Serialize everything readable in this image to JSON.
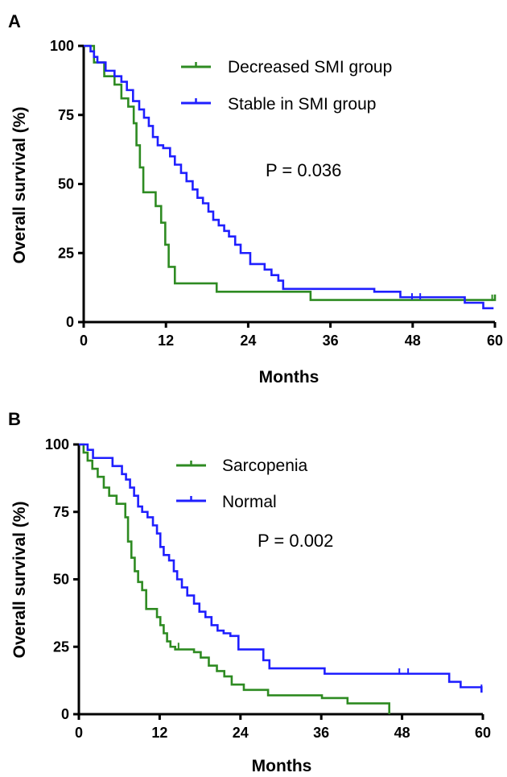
{
  "colors": {
    "decreased": "#2e8b22",
    "stable": "#1f1fff",
    "axis": "#000000"
  },
  "chart_data": [
    {
      "type": "line",
      "panel_label": "A",
      "xlabel": "Months",
      "ylabel": "Overall survival (%)",
      "xlim": [
        0,
        60
      ],
      "ylim": [
        0,
        100
      ],
      "xticks": [
        "0",
        "12",
        "24",
        "36",
        "48",
        "60"
      ],
      "yticks": [
        "0",
        "25",
        "50",
        "75",
        "100"
      ],
      "xtick_values": [
        0,
        12,
        24,
        36,
        48,
        60
      ],
      "ytick_values": [
        0,
        25,
        50,
        75,
        100
      ],
      "legend": "top-center",
      "grid": false,
      "annotation": "P = 0.036",
      "series": [
        {
          "name": "Decreased SMI group",
          "color_key": "decreased",
          "x": [
            0,
            1,
            1.5,
            3,
            4.5,
            5.5,
            6.5,
            7.3,
            7.7,
            8.2,
            8.7,
            9.1,
            10.5,
            11.3,
            11.9,
            12.4,
            12.8,
            13.3,
            15.1,
            19.4,
            33.1,
            45.6,
            56.2,
            59.6,
            60
          ],
          "y": [
            100,
            100,
            94,
            89,
            86,
            81,
            78,
            72,
            64,
            56,
            47,
            47,
            42,
            36,
            28,
            20,
            20,
            14,
            14,
            11,
            8,
            8,
            8,
            8,
            10
          ],
          "censored": [
            [
              59.6,
              8.5
            ]
          ]
        },
        {
          "name": "Stable in SMI group",
          "color_key": "stable",
          "x": [
            0,
            1,
            1.5,
            2,
            3.2,
            4.5,
            5.5,
            6.3,
            7.2,
            8.1,
            8.8,
            9.5,
            10.1,
            10.8,
            11.6,
            12.6,
            13.3,
            14.2,
            15,
            15.9,
            16.6,
            17.4,
            18.2,
            18.9,
            19.7,
            20.5,
            21.2,
            22.1,
            22.9,
            24.3,
            25.6,
            26.4,
            27.4,
            28.4,
            29.1,
            30.3,
            33.5,
            36.8,
            42.4,
            46.2,
            47.9,
            48.5,
            49.1,
            55.6,
            58.3,
            59.8
          ],
          "y": [
            100,
            98,
            96,
            94,
            91,
            89,
            87,
            84,
            80,
            77,
            74,
            71,
            67,
            64,
            63,
            60,
            57,
            54,
            51,
            48,
            45,
            43,
            40,
            37,
            35,
            33,
            31,
            28,
            25,
            21,
            21,
            19,
            17,
            15,
            12,
            12,
            12,
            12,
            11,
            9,
            9,
            9,
            9,
            7,
            5,
            5
          ],
          "censored": [
            [
              47.9,
              9
            ],
            [
              49.1,
              9
            ]
          ]
        }
      ]
    },
    {
      "type": "line",
      "panel_label": "B",
      "xlabel": "Months",
      "ylabel": "Overall survival (%)",
      "xlim": [
        0,
        60
      ],
      "ylim": [
        0,
        100
      ],
      "xticks": [
        "0",
        "12",
        "24",
        "36",
        "48",
        "60"
      ],
      "yticks": [
        "0",
        "25",
        "50",
        "75",
        "100"
      ],
      "xtick_values": [
        0,
        12,
        24,
        36,
        48,
        60
      ],
      "ytick_values": [
        0,
        25,
        50,
        75,
        100
      ],
      "legend": "top-center",
      "grid": false,
      "annotation": "P = 0.002",
      "series": [
        {
          "name": "Sarcopenia",
          "color_key": "decreased",
          "x": [
            0,
            0.7,
            1.3,
            2,
            2.8,
            3.7,
            4.5,
            5.6,
            6.9,
            7.3,
            7.8,
            8.3,
            8.8,
            9.4,
            10,
            11.6,
            12.1,
            12.6,
            13.1,
            13.6,
            14.3,
            17.1,
            18.1,
            19.3,
            20.5,
            21.6,
            22.7,
            24.5,
            28.1,
            36.1,
            39.9,
            46.1
          ],
          "y": [
            100,
            97,
            94,
            91,
            88,
            84,
            81,
            78,
            73,
            64,
            58,
            53,
            49,
            46,
            39,
            36,
            33,
            30,
            27,
            25,
            24,
            23,
            21,
            18,
            16,
            14,
            11,
            9,
            7,
            6,
            4,
            0
          ],
          "censored": [
            [
              14.8,
              25
            ]
          ]
        },
        {
          "name": "Normal",
          "color_key": "stable",
          "x": [
            0,
            1.3,
            2.1,
            3.4,
            5,
            6.4,
            7,
            7.6,
            8.2,
            8.8,
            9.4,
            10.2,
            11,
            11.6,
            12.1,
            12.6,
            13.4,
            14.1,
            14.6,
            15.3,
            16.1,
            17.1,
            17.9,
            18.8,
            19.7,
            20.6,
            21.5,
            22.5,
            23.7,
            27.4,
            28.3,
            31.4,
            36.5,
            47.3,
            48.6,
            55,
            56.7,
            59.8
          ],
          "y": [
            100,
            98,
            95,
            95,
            92,
            89,
            87,
            84,
            81,
            77,
            75,
            73,
            70,
            67,
            62,
            59,
            57,
            53,
            50,
            47,
            44,
            41,
            38,
            36,
            33,
            31,
            30,
            29,
            24,
            20,
            17,
            17,
            15,
            15,
            15,
            12,
            10,
            8
          ],
          "censored": [
            [
              47.6,
              15.5
            ],
            [
              48.9,
              15.5
            ],
            [
              59.8,
              9.5
            ]
          ]
        }
      ]
    }
  ]
}
